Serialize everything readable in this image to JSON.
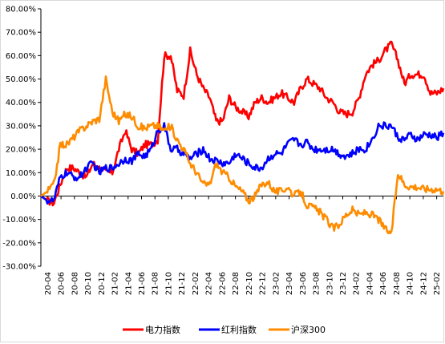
{
  "chart_data": {
    "type": "line",
    "title": "",
    "xlabel": "",
    "ylabel": "",
    "ylim": [
      -30,
      80
    ],
    "y_ticks": [
      "80.00%",
      "70.00%",
      "60.00%",
      "50.00%",
      "40.00%",
      "30.00%",
      "20.00%",
      "10.00%",
      "0.00%",
      "-10.00%",
      "-20.00%",
      "-30.00%"
    ],
    "x_tick_labels": [
      "20-04",
      "20-06",
      "20-08",
      "20-10",
      "20-12",
      "21-02",
      "21-04",
      "21-06",
      "21-08",
      "21-10",
      "21-12",
      "22-02",
      "22-04",
      "22-06",
      "22-08",
      "22-10",
      "22-12",
      "23-02",
      "23-04",
      "23-06",
      "23-08",
      "23-10",
      "23-12",
      "24-02",
      "24-04",
      "24-06",
      "24-08",
      "24-10",
      "24-12",
      "25-02"
    ],
    "grid": false,
    "legend_position": "bottom",
    "series": [
      {
        "name": "电力指数",
        "color": "#ff0000",
        "values": [
          0,
          -2,
          -3,
          5,
          12,
          12,
          10,
          8,
          14,
          12,
          10,
          10,
          20,
          28,
          20,
          18,
          22,
          22,
          24,
          60,
          60,
          45,
          43,
          62,
          52,
          46,
          42,
          32,
          32,
          42,
          38,
          36,
          34,
          40,
          42,
          40,
          42,
          44,
          42,
          40,
          46,
          50,
          48,
          46,
          42,
          40,
          36,
          35,
          36,
          42,
          52,
          56,
          58,
          62,
          65,
          58,
          48,
          52,
          52,
          52,
          44,
          44,
          46
        ]
      },
      {
        "name": "红利指数",
        "color": "#0000ff",
        "values": [
          0,
          -2,
          -2,
          8,
          10,
          8,
          8,
          12,
          14,
          10,
          12,
          12,
          14,
          16,
          15,
          18,
          17,
          20,
          28,
          30,
          20,
          20,
          18,
          16,
          18,
          20,
          16,
          15,
          14,
          14,
          18,
          16,
          14,
          12,
          12,
          16,
          18,
          18,
          22,
          24,
          22,
          23,
          20,
          20,
          20,
          20,
          18,
          17,
          18,
          20,
          20,
          24,
          30,
          30,
          30,
          25,
          24,
          26,
          24,
          26,
          26,
          25,
          27
        ]
      },
      {
        "name": "沪深300",
        "color": "#ff8c00",
        "values": [
          0,
          2,
          5,
          22,
          22,
          25,
          28,
          30,
          32,
          33,
          50,
          36,
          32,
          35,
          34,
          30,
          29,
          30,
          30,
          28,
          30,
          24,
          20,
          14,
          10,
          5,
          5,
          14,
          10,
          8,
          4,
          2,
          -2,
          0,
          5,
          6,
          2,
          2,
          4,
          0,
          2,
          -4,
          -5,
          -7,
          -10,
          -14,
          -12,
          -8,
          -6,
          -8,
          -7,
          -8,
          -10,
          -14,
          -16,
          10,
          5,
          4,
          4,
          3,
          3,
          3,
          2
        ]
      }
    ]
  }
}
